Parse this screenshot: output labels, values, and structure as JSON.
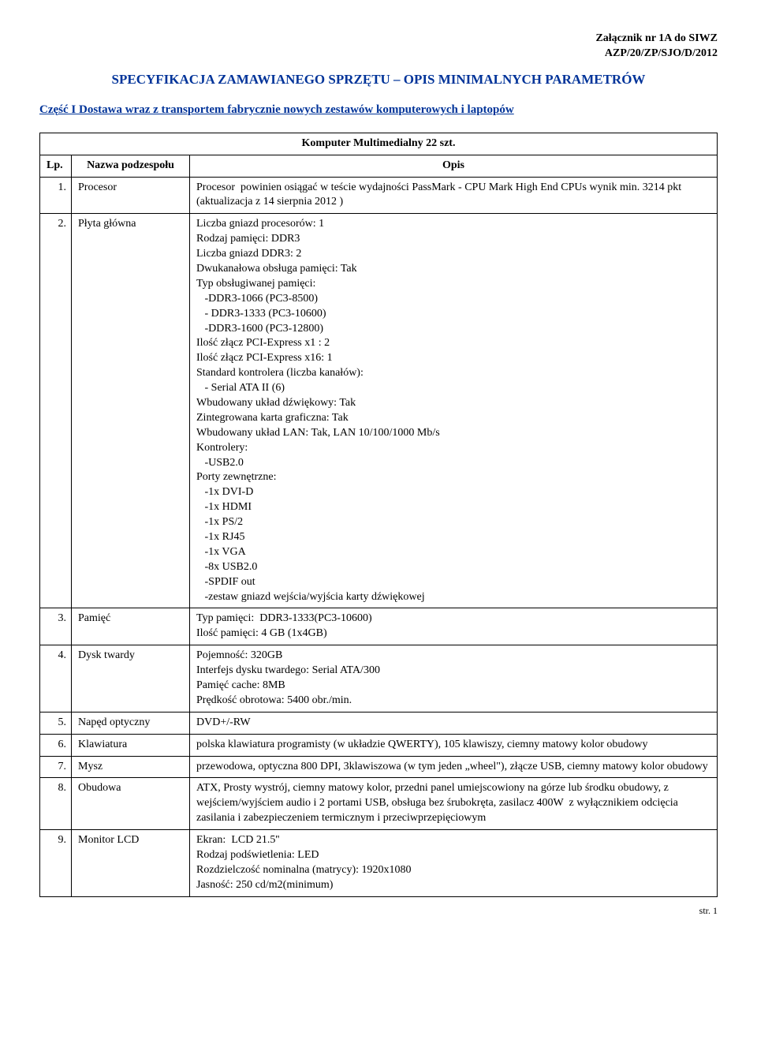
{
  "header": {
    "line1": "Załącznik nr 1A do SIWZ",
    "line2": "AZP/20/ZP/SJO/D/2012"
  },
  "titles": {
    "main": "SPECYFIKACJA ZAMAWIANEGO SPRZĘTU – OPIS MINIMALNYCH PARAMETRÓW",
    "sub": "Część I Dostawa wraz z transportem fabrycznie nowych zestawów komputerowych i laptopów"
  },
  "table": {
    "caption": "Komputer Multimedialny 22 szt.",
    "columns": [
      "Lp.",
      "Nazwa podzespołu",
      "Opis"
    ],
    "rows": [
      {
        "num": "1.",
        "label": "Procesor",
        "desc": "Procesor  powinien osiągać w teście wydajności PassMark - CPU Mark High End CPUs wynik min. 3214 pkt (aktualizacja z 14 sierpnia 2012 )"
      },
      {
        "num": "2.",
        "label": "Płyta główna",
        "desc": "Liczba gniazd procesorów: 1\nRodzaj pamięci: DDR3\nLiczba gniazd DDR3: 2\nDwukanałowa obsługa pamięci: Tak\nTyp obsługiwanej pamięci:\n   -DDR3-1066 (PC3-8500)\n   - DDR3-1333 (PC3-10600)\n   -DDR3-1600 (PC3-12800)\nIlość złącz PCI-Express x1 : 2\nIlość złącz PCI-Express x16: 1\nStandard kontrolera (liczba kanałów):\n   - Serial ATA II (6)\nWbudowany układ dźwiękowy: Tak\nZintegrowana karta graficzna: Tak\nWbudowany układ LAN: Tak, LAN 10/100/1000 Mb/s\nKontrolery:\n   -USB2.0\nPorty zewnętrzne:\n   -1x DVI-D\n   -1x HDMI\n   -1x PS/2\n   -1x RJ45\n   -1x VGA\n   -8x USB2.0\n   -SPDIF out\n   -zestaw gniazd wejścia/wyjścia karty dźwiękowej"
      },
      {
        "num": "3.",
        "label": "Pamięć",
        "desc": "Typ pamięci:  DDR3-1333(PC3-10600)\nIlość pamięci: 4 GB (1x4GB)"
      },
      {
        "num": "4.",
        "label": "Dysk twardy",
        "desc": "Pojemność: 320GB\nInterfejs dysku twardego: Serial ATA/300\nPamięć cache: 8MB\nPrędkość obrotowa: 5400 obr./min."
      },
      {
        "num": "5.",
        "label": "Napęd optyczny",
        "desc": "DVD+/-RW"
      },
      {
        "num": "6.",
        "label": "Klawiatura",
        "desc": "polska klawiatura programisty (w układzie QWERTY), 105 klawiszy, ciemny matowy kolor obudowy"
      },
      {
        "num": "7.",
        "label": "Mysz",
        "desc": "przewodowa, optyczna 800 DPI, 3klawiszowa (w tym jeden „wheel\"), złącze USB, ciemny matowy kolor obudowy"
      },
      {
        "num": "8.",
        "label": "Obudowa",
        "desc": "ATX, Prosty wystrój, ciemny matowy kolor, przedni panel umiejscowiony na górze lub środku obudowy, z wejściem/wyjściem audio i 2 portami USB, obsługa bez śrubokręta, zasilacz 400W  z wyłącznikiem odcięcia zasilania i zabezpieczeniem termicznym i przeciwprzepięciowym"
      },
      {
        "num": "9.",
        "label": "Monitor LCD",
        "desc": "Ekran:  LCD 21.5''\nRodzaj podświetlenia: LED\nRozdzielczość nominalna (matrycy): 1920x1080\nJasność: 250 cd/m2(minimum)"
      }
    ]
  },
  "footer": "str. 1",
  "colors": {
    "heading_blue": "#003399",
    "text": "#000000",
    "background": "#ffffff",
    "border": "#000000"
  }
}
